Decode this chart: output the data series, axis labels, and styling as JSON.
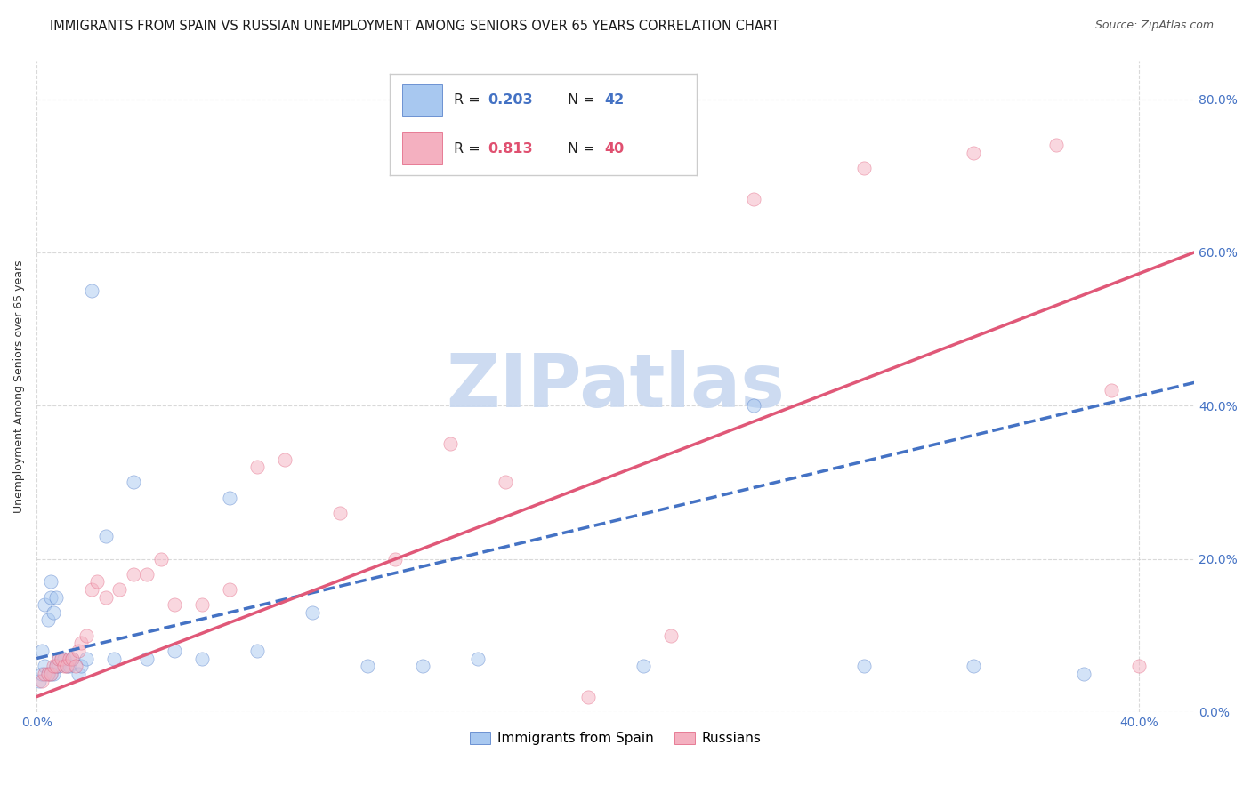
{
  "title": "IMMIGRANTS FROM SPAIN VS RUSSIAN UNEMPLOYMENT AMONG SENIORS OVER 65 YEARS CORRELATION CHART",
  "source": "Source: ZipAtlas.com",
  "ylabel": "Unemployment Among Seniors over 65 years",
  "ytick_labels": [
    "0.0%",
    "20.0%",
    "40.0%",
    "60.0%",
    "80.0%"
  ],
  "ytick_values": [
    0.0,
    0.2,
    0.4,
    0.6,
    0.8
  ],
  "legend_entries": [
    {
      "label": "Immigrants from Spain",
      "R": "0.203",
      "N": "42",
      "color": "#a8c8f0",
      "text_color": "#4472c4"
    },
    {
      "label": "Russians",
      "R": "0.813",
      "N": "40",
      "color": "#f4b8c8",
      "text_color": "#e05070"
    }
  ],
  "xlim": [
    0.0,
    0.42
  ],
  "ylim": [
    -0.02,
    0.88
  ],
  "plot_ylim": [
    0.0,
    0.85
  ],
  "background_color": "#ffffff",
  "watermark_text": "ZIPatlas",
  "watermark_color": "#c8d8f0",
  "blue_scatter_x": [
    0.001,
    0.002,
    0.002,
    0.003,
    0.003,
    0.004,
    0.004,
    0.005,
    0.005,
    0.005,
    0.006,
    0.006,
    0.007,
    0.007,
    0.008,
    0.008,
    0.009,
    0.01,
    0.011,
    0.012,
    0.013,
    0.015,
    0.016,
    0.018,
    0.02,
    0.025,
    0.028,
    0.035,
    0.04,
    0.05,
    0.06,
    0.07,
    0.08,
    0.1,
    0.12,
    0.14,
    0.16,
    0.22,
    0.26,
    0.3,
    0.34,
    0.38
  ],
  "blue_scatter_y": [
    0.04,
    0.05,
    0.08,
    0.06,
    0.14,
    0.05,
    0.12,
    0.05,
    0.15,
    0.17,
    0.05,
    0.13,
    0.06,
    0.15,
    0.06,
    0.07,
    0.07,
    0.07,
    0.06,
    0.06,
    0.07,
    0.05,
    0.06,
    0.07,
    0.55,
    0.23,
    0.07,
    0.3,
    0.07,
    0.08,
    0.07,
    0.28,
    0.08,
    0.13,
    0.06,
    0.06,
    0.07,
    0.06,
    0.4,
    0.06,
    0.06,
    0.05
  ],
  "pink_scatter_x": [
    0.002,
    0.003,
    0.004,
    0.005,
    0.006,
    0.007,
    0.008,
    0.009,
    0.01,
    0.011,
    0.012,
    0.013,
    0.014,
    0.015,
    0.016,
    0.018,
    0.02,
    0.022,
    0.025,
    0.03,
    0.035,
    0.04,
    0.045,
    0.05,
    0.06,
    0.07,
    0.08,
    0.09,
    0.11,
    0.13,
    0.15,
    0.17,
    0.2,
    0.23,
    0.26,
    0.3,
    0.34,
    0.37,
    0.39,
    0.4
  ],
  "pink_scatter_y": [
    0.04,
    0.05,
    0.05,
    0.05,
    0.06,
    0.06,
    0.07,
    0.07,
    0.06,
    0.06,
    0.07,
    0.07,
    0.06,
    0.08,
    0.09,
    0.1,
    0.16,
    0.17,
    0.15,
    0.16,
    0.18,
    0.18,
    0.2,
    0.14,
    0.14,
    0.16,
    0.32,
    0.33,
    0.26,
    0.2,
    0.35,
    0.3,
    0.02,
    0.1,
    0.67,
    0.71,
    0.73,
    0.74,
    0.42,
    0.06
  ],
  "blue_line_x": [
    0.0,
    0.42
  ],
  "blue_line_y": [
    0.07,
    0.43
  ],
  "pink_line_x": [
    0.0,
    0.42
  ],
  "pink_line_y": [
    0.02,
    0.6
  ],
  "scatter_size": 120,
  "scatter_alpha": 0.5,
  "scatter_color_blue": "#a8c8f0",
  "scatter_color_pink": "#f4b0c0",
  "line_color_blue": "#4472c4",
  "line_color_pink": "#e05878",
  "grid_color": "#d0d0d0",
  "title_fontsize": 10.5,
  "axis_label_fontsize": 9,
  "tick_label_color": "#4472c4",
  "tick_label_fontsize": 10
}
